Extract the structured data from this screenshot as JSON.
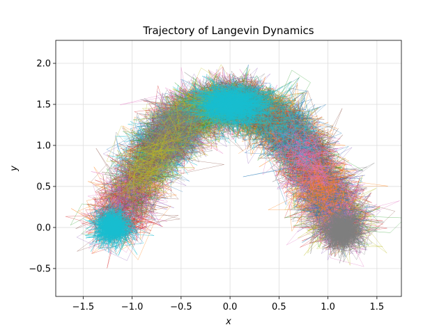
{
  "chart_data": {
    "type": "line",
    "title": "Trajectory of Langevin Dynamics",
    "xlabel": "x",
    "ylabel": "y",
    "xlim": [
      -1.78,
      1.75
    ],
    "ylim": [
      -0.84,
      2.28
    ],
    "xticks": [
      -1.5,
      -1.0,
      -0.5,
      0.0,
      0.5,
      1.0,
      1.5
    ],
    "yticks": [
      -0.5,
      0.0,
      0.5,
      1.0,
      1.5,
      2.0
    ],
    "xtick_labels": [
      "−1.5",
      "−1.0",
      "−0.5",
      "0.0",
      "0.5",
      "1.0",
      "1.5"
    ],
    "ytick_labels": [
      "−0.5",
      "0.0",
      "0.5",
      "1.0",
      "1.5",
      "2.0"
    ],
    "grid": true,
    "colors": [
      "#1f77b4",
      "#ff7f0e",
      "#2ca02c",
      "#d62728",
      "#9467bd",
      "#8c564b",
      "#e377c2",
      "#7f7f7f",
      "#bcbd22",
      "#17becf"
    ],
    "series_note_visible": false,
    "clusters": [
      {
        "center": [
          -1.2,
          0.0
        ],
        "spread": [
          0.18,
          0.2
        ]
      },
      {
        "center": [
          0.0,
          1.5
        ],
        "spread": [
          0.35,
          0.22
        ]
      },
      {
        "center": [
          1.15,
          -0.05
        ],
        "spread": [
          0.18,
          0.2
        ]
      }
    ],
    "path": [
      [
        -1.2,
        0.0
      ],
      [
        -0.85,
        0.75
      ],
      [
        -0.5,
        1.3
      ],
      [
        0.0,
        1.55
      ],
      [
        0.5,
        1.3
      ],
      [
        0.85,
        0.75
      ],
      [
        1.15,
        -0.05
      ]
    ],
    "dominant_color_by_region": {
      "left": "#17becf",
      "center": "#17becf",
      "right": "#7f7f7f"
    }
  }
}
